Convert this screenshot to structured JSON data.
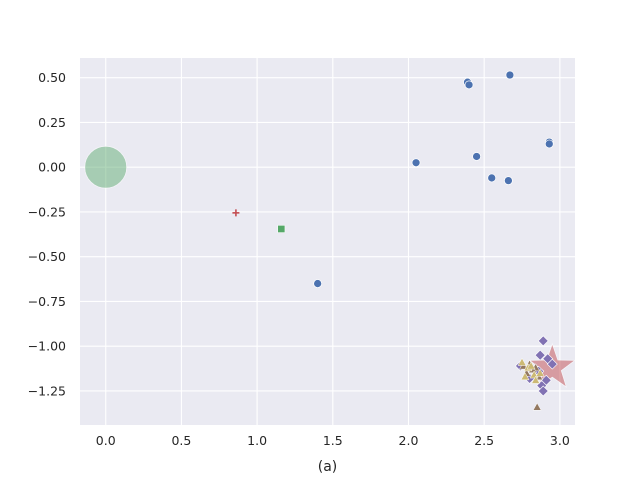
{
  "chart_data": {
    "type": "scatter",
    "title": "",
    "xlabel": "(a)",
    "ylabel": "",
    "xlim": [
      -0.17,
      3.1
    ],
    "ylim": [
      -1.44,
      0.61
    ],
    "xticks": [
      0.0,
      0.5,
      1.0,
      1.5,
      2.0,
      2.5,
      3.0
    ],
    "xtick_labels": [
      "0.0",
      "0.5",
      "1.0",
      "1.5",
      "2.0",
      "2.5",
      "3.0"
    ],
    "yticks": [
      0.5,
      0.25,
      0.0,
      -0.25,
      -0.5,
      -0.75,
      -1.0,
      -1.25
    ],
    "ytick_labels": [
      "0.50",
      "0.25",
      "0.00",
      "−0.25",
      "−0.50",
      "−0.75",
      "−1.00",
      "−1.25"
    ],
    "grid": true,
    "legend": "none",
    "colors": {
      "background": "#eaeaf2",
      "grid": "#ffffff",
      "blue": "#4c72b0",
      "green": "#55a868",
      "red": "#c44e52",
      "purple": "#8172b3",
      "brown": "#937860",
      "tan": "#ccb974"
    },
    "series": [
      {
        "marker": "circle",
        "color": "#4c72b0",
        "size": "small",
        "points": [
          [
            2.39,
            0.475
          ],
          [
            2.4,
            0.46
          ],
          [
            2.67,
            0.515
          ],
          [
            2.05,
            0.025
          ],
          [
            2.45,
            0.06
          ],
          [
            2.55,
            -0.06
          ],
          [
            2.66,
            -0.075
          ],
          [
            2.93,
            0.14
          ],
          [
            2.93,
            0.13
          ],
          [
            1.4,
            -0.65
          ]
        ]
      },
      {
        "marker": "circle",
        "color": "#55a868",
        "size": "large",
        "alpha": 0.45,
        "points": [
          [
            0.0,
            0.0
          ]
        ]
      },
      {
        "marker": "plus",
        "color": "#c44e52",
        "size": "small",
        "points": [
          [
            0.86,
            -0.255
          ]
        ]
      },
      {
        "marker": "square",
        "color": "#55a868",
        "size": "small",
        "points": [
          [
            1.16,
            -0.345
          ]
        ]
      },
      {
        "marker": "star",
        "color": "#c44e52",
        "size": "large",
        "alpha": 0.5,
        "points": [
          [
            2.95,
            -1.12
          ]
        ]
      },
      {
        "marker": "diamond",
        "color": "#8172b3",
        "size": "small",
        "points": [
          [
            2.89,
            -0.97
          ],
          [
            2.87,
            -1.05
          ],
          [
            2.92,
            -1.07
          ],
          [
            2.95,
            -1.1
          ],
          [
            2.74,
            -1.11
          ],
          [
            2.8,
            -1.18
          ],
          [
            2.86,
            -1.14
          ],
          [
            2.91,
            -1.19
          ],
          [
            2.88,
            -1.22
          ],
          [
            2.89,
            -1.25
          ]
        ]
      },
      {
        "marker": "triangle",
        "color": "#937860",
        "size": "small",
        "points": [
          [
            2.76,
            -1.11
          ],
          [
            2.8,
            -1.1
          ],
          [
            2.84,
            -1.12
          ],
          [
            2.78,
            -1.15
          ],
          [
            2.86,
            -1.17
          ],
          [
            2.82,
            -1.13
          ],
          [
            2.85,
            -1.34
          ]
        ]
      },
      {
        "marker": "triangle",
        "color": "#ccb974",
        "size": "small",
        "points": [
          [
            2.75,
            -1.09
          ],
          [
            2.79,
            -1.12
          ],
          [
            2.83,
            -1.16
          ],
          [
            2.77,
            -1.17
          ],
          [
            2.81,
            -1.11
          ],
          [
            2.87,
            -1.15
          ],
          [
            2.84,
            -1.19
          ]
        ]
      }
    ]
  }
}
